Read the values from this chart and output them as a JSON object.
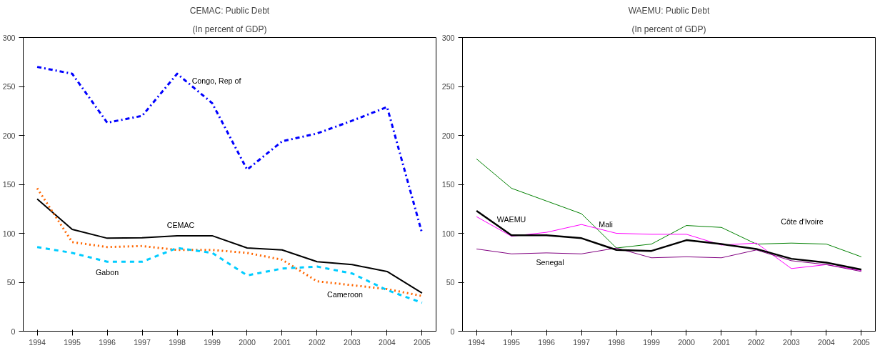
{
  "chart_data": [
    {
      "type": "line",
      "title": "CEMAC: Public Debt",
      "subtitle": "(In percent of GDP)",
      "x": [
        1994,
        1995,
        1996,
        1997,
        1998,
        1999,
        2000,
        2001,
        2002,
        2003,
        2004,
        2005
      ],
      "series": [
        {
          "color": "#0000ff",
          "line_style": "dashdot",
          "values": [
            270,
            263,
            213,
            220,
            263,
            233,
            165,
            194,
            202,
            215,
            229,
            100
          ]
        },
        {
          "color": "#000000",
          "line_style": "solid",
          "values": [
            135,
            104,
            95,
            95.5,
            97.5,
            97.5,
            85,
            83,
            71,
            68,
            61,
            39
          ]
        },
        {
          "color": "#ff6600",
          "line_style": "dotted",
          "values": [
            146,
            91,
            86,
            87,
            83,
            83,
            80,
            73,
            51,
            47,
            43,
            36
          ]
        },
        {
          "color": "#00ccff",
          "line_style": "dashed",
          "values": [
            86,
            80,
            71,
            71,
            85,
            80,
            57,
            64,
            66,
            59,
            42,
            29
          ]
        }
      ],
      "annotations": [
        {
          "text": "Congo, Rep of",
          "x": 1998,
          "y": 263
        },
        {
          "text": "CEMAC",
          "x": 1998,
          "y": 97.5
        },
        {
          "text": "Gabon",
          "x": 1996,
          "y": 71
        },
        {
          "text": "Cameroon",
          "x": 2003,
          "y": 47
        }
      ],
      "xlim": [
        1993.6,
        2005.4
      ],
      "ylim": [
        0,
        300
      ],
      "xticks": [
        1994,
        1995,
        1996,
        1997,
        1998,
        1999,
        2000,
        2001,
        2002,
        2003,
        2004,
        2005
      ],
      "yticks": [
        0,
        50,
        100,
        150,
        200,
        250,
        300
      ],
      "grid": false,
      "marker": "none"
    },
    {
      "type": "line",
      "title": "WAEMU: Public Debt",
      "subtitle": "(In percent of GDP)",
      "x": [
        1994,
        1995,
        1996,
        1997,
        1998,
        1999,
        2000,
        2001,
        2002,
        2003,
        2004,
        2005
      ],
      "series": [
        {
          "color": "#008000",
          "line_style": "solid",
          "values": [
            176,
            146,
            133,
            120,
            85,
            89,
            108,
            106,
            89,
            90,
            89,
            76
          ]
        },
        {
          "color": "#ff00ff",
          "line_style": "solid",
          "values": [
            117,
            97,
            101,
            109,
            100,
            99,
            99,
            88,
            90,
            64,
            68,
            62
          ]
        },
        {
          "color": "#800080",
          "line_style": "solid",
          "values": [
            84,
            79,
            80,
            79,
            85,
            75,
            76,
            75,
            83,
            72,
            68,
            61
          ]
        },
        {
          "color": "#000000",
          "line_style": "solid",
          "values": [
            123,
            98,
            98,
            95,
            83,
            82,
            93,
            89,
            84,
            74,
            70,
            63
          ]
        }
      ],
      "annotations": [
        {
          "text": "WAEMU",
          "x": 1995,
          "y": 98
        },
        {
          "text": "Mali",
          "x": 1998,
          "y": 100
        },
        {
          "text": "Senegal",
          "x": 1996,
          "y": 80
        },
        {
          "text": "Côte d'Ivoire",
          "x": 2003,
          "y": 90
        }
      ],
      "xlim": [
        1993.6,
        2005.4
      ],
      "ylim": [
        0,
        300
      ],
      "xticks": [
        1994,
        1995,
        1996,
        1997,
        1998,
        1999,
        2000,
        2001,
        2002,
        2003,
        2004,
        2005
      ],
      "yticks": [
        0,
        50,
        100,
        150,
        200,
        250,
        300
      ],
      "grid": false,
      "marker": "none"
    }
  ]
}
